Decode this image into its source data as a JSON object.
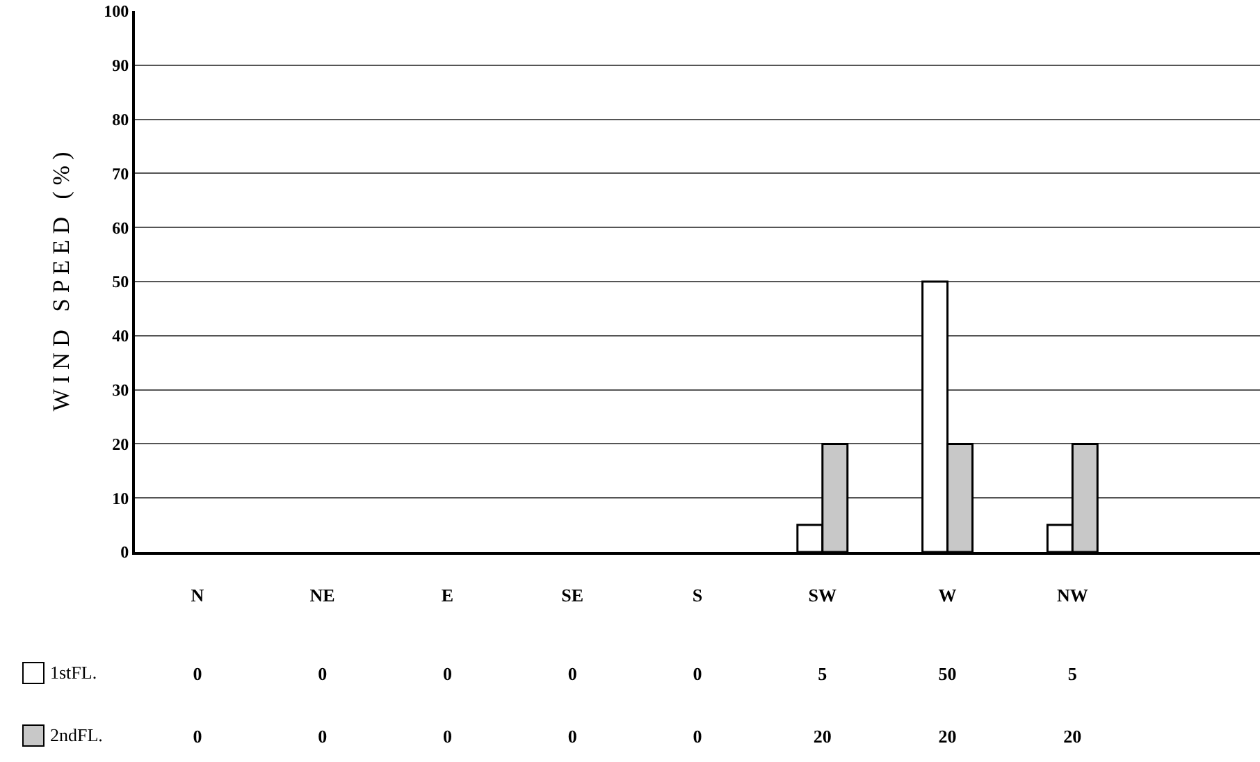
{
  "chart_data": {
    "type": "bar",
    "ylabel": "W I N D   S P E E D   ( % )",
    "categories": [
      "N",
      "NE",
      "E",
      "SE",
      "S",
      "SW",
      "W",
      "NW",
      null
    ],
    "series": [
      {
        "name": "1stFL.",
        "color": "#ffffff",
        "values": [
          0,
          0,
          0,
          0,
          0,
          5,
          50,
          5,
          null
        ]
      },
      {
        "name": "2ndFL.",
        "color": "#c8c8c8",
        "values": [
          0,
          0,
          0,
          0,
          0,
          20,
          20,
          20,
          null
        ]
      }
    ],
    "ylim": [
      0,
      100
    ],
    "yticks": [
      0,
      10,
      20,
      30,
      40,
      50,
      60,
      70,
      80,
      90,
      100
    ],
    "grid": "y",
    "legend": "bottom left",
    "data_labels": true
  }
}
